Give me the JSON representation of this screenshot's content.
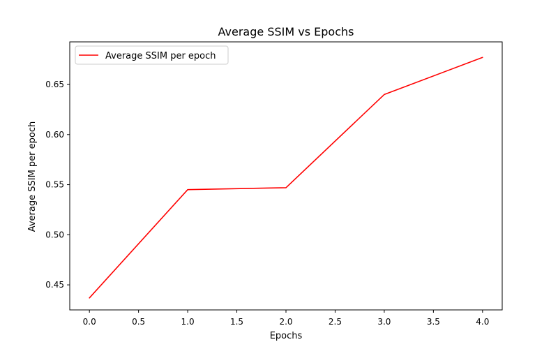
{
  "chart_data": {
    "type": "line",
    "title": "Average SSIM vs Epochs",
    "xlabel": "Epochs",
    "ylabel": "Average SSIM per epoch",
    "xlim": [
      -0.2,
      4.2
    ],
    "ylim": [
      0.425,
      0.6925
    ],
    "x_ticks": [
      0.0,
      0.5,
      1.0,
      1.5,
      2.0,
      2.5,
      3.0,
      3.5,
      4.0
    ],
    "x_tick_labels": [
      "0.0",
      "0.5",
      "1.0",
      "1.5",
      "2.0",
      "2.5",
      "3.0",
      "3.5",
      "4.0"
    ],
    "y_ticks": [
      0.45,
      0.5,
      0.55,
      0.6,
      0.65
    ],
    "y_tick_labels": [
      "0.45",
      "0.50",
      "0.55",
      "0.60",
      "0.65"
    ],
    "grid": false,
    "legend_position": "top-left",
    "series": [
      {
        "name": "Average SSIM per epoch",
        "color": "#ff0000",
        "x": [
          0,
          1,
          2,
          3,
          4
        ],
        "y": [
          0.437,
          0.545,
          0.547,
          0.64,
          0.677
        ]
      }
    ]
  }
}
